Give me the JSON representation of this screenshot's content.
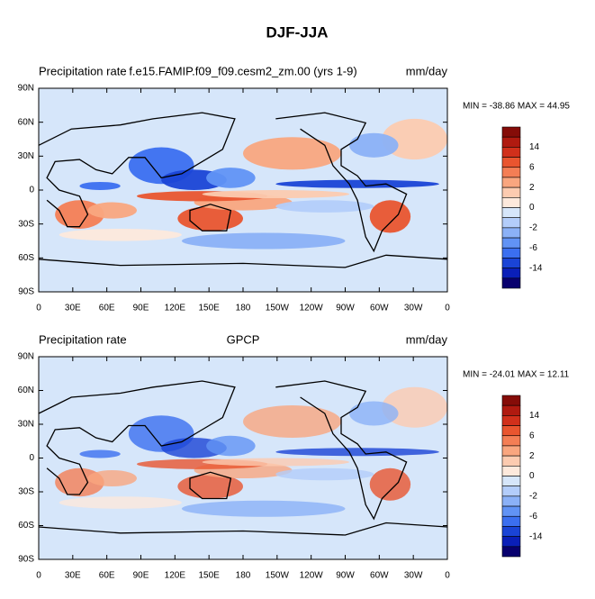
{
  "title": "DJF-JJA",
  "panels": [
    {
      "left_label": "Precipitation rate",
      "center_label": "f.e15.FAMIP.f09_f09.cesm2_zm.00 (yrs 1-9)",
      "right_label": "mm/day",
      "min_max": "MIN = -38.86 MAX =  44.95",
      "lat_ticks": [
        "90N",
        "60N",
        "30N",
        "0",
        "30S",
        "60S",
        "90S"
      ],
      "lon_ticks": [
        "0",
        "30E",
        "60E",
        "90E",
        "120E",
        "150E",
        "180",
        "150W",
        "120W",
        "90W",
        "60W",
        "30W",
        "0"
      ],
      "colorbar_labels": [
        "14",
        "6",
        "2",
        "0",
        "-2",
        "-6",
        "-14"
      ]
    },
    {
      "left_label": "Precipitation rate",
      "center_label": "GPCP",
      "right_label": "mm/day",
      "min_max": "MIN = -24.01 MAX =  12.11",
      "lat_ticks": [
        "90N",
        "60N",
        "30N",
        "0",
        "30S",
        "60S",
        "90S"
      ],
      "lon_ticks": [
        "0",
        "30E",
        "60E",
        "90E",
        "120E",
        "150E",
        "180",
        "150W",
        "120W",
        "90W",
        "60W",
        "30W",
        "0"
      ],
      "colorbar_labels": [
        "14",
        "6",
        "2",
        "0",
        "-2",
        "-6",
        "-14"
      ]
    }
  ]
}
